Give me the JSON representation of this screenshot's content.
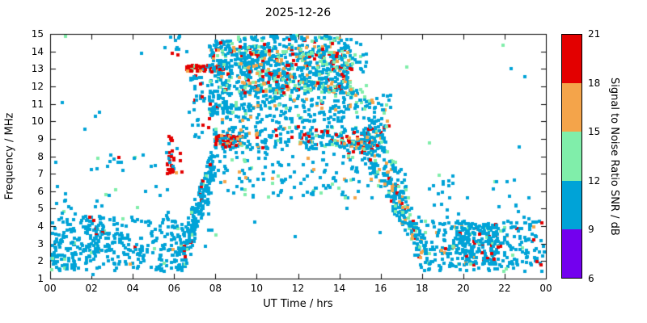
{
  "chart_data": {
    "type": "scatter",
    "title": "2025-12-26",
    "xlabel": "UT Time / hrs",
    "ylabel": "Frequency / MHz",
    "xlim": [
      0,
      24
    ],
    "ylim": [
      1,
      15
    ],
    "grid": false,
    "x_ticks": {
      "values": [
        0,
        2,
        4,
        6,
        8,
        10,
        12,
        14,
        16,
        18,
        20,
        22,
        24
      ],
      "labels": [
        "00",
        "02",
        "04",
        "06",
        "08",
        "10",
        "12",
        "14",
        "16",
        "18",
        "20",
        "22",
        "00"
      ]
    },
    "y_ticks": [
      1,
      2,
      3,
      4,
      5,
      6,
      7,
      8,
      9,
      10,
      11,
      12,
      13,
      14,
      15
    ],
    "palette": {
      "blue": "#00a3d7",
      "green": "#80eeaa",
      "orange": "#f4a44a",
      "red": "#e30000",
      "purple": "#7300ee"
    },
    "colorbar": {
      "label": "Signal to Noise Ratio SNR / dB",
      "min": 6,
      "max": 21,
      "ticks": [
        6,
        9,
        12,
        15,
        18,
        21
      ],
      "segments": [
        {
          "from": 6,
          "to": 9,
          "color": "#7300ee"
        },
        {
          "from": 9,
          "to": 12,
          "color": "#00a3d7"
        },
        {
          "from": 12,
          "to": 15,
          "color": "#80eeaa"
        },
        {
          "from": 15,
          "to": 18,
          "color": "#f4a44a"
        },
        {
          "from": 18,
          "to": 21,
          "color": "#e30000"
        }
      ]
    },
    "point_size": 4,
    "seed": 1337,
    "clusters": [
      {
        "kind": "box",
        "t": [
          0.0,
          6.4
        ],
        "f": [
          1.4,
          4.5
        ],
        "n": 300,
        "mix": {
          "blue": 0.93,
          "green": 0.04,
          "orange": 0.015,
          "red": 0.015
        }
      },
      {
        "kind": "box",
        "t": [
          0.0,
          1.2
        ],
        "f": [
          1.5,
          3.6
        ],
        "n": 50,
        "mix": {
          "blue": 0.95,
          "green": 0.05
        }
      },
      {
        "kind": "box",
        "t": [
          1.5,
          2.6
        ],
        "f": [
          2.4,
          4.6
        ],
        "n": 60,
        "mix": {
          "blue": 0.9,
          "green": 0.06,
          "red": 0.04
        }
      },
      {
        "kind": "box",
        "t": [
          0.3,
          5.8
        ],
        "f": [
          4.6,
          6.6
        ],
        "n": 22,
        "mix": {
          "blue": 0.9,
          "green": 0.1
        }
      },
      {
        "kind": "box",
        "t": [
          1.8,
          5.2
        ],
        "f": [
          7.2,
          8.1
        ],
        "n": 16,
        "mix": {
          "blue": 0.8,
          "green": 0.1,
          "red": 0.1
        }
      },
      {
        "kind": "box",
        "t": [
          5.6,
          6.4
        ],
        "f": [
          7.0,
          8.3
        ],
        "n": 28,
        "mix": {
          "red": 0.6,
          "orange": 0.15,
          "blue": 0.25
        }
      },
      {
        "kind": "box",
        "t": [
          5.75,
          6.1
        ],
        "f": [
          8.7,
          9.15
        ],
        "n": 8,
        "mix": {
          "red": 0.7,
          "blue": 0.3
        }
      },
      {
        "kind": "box",
        "t": [
          5.6,
          6.7
        ],
        "f": [
          13.8,
          15.1
        ],
        "n": 12,
        "mix": {
          "blue": 0.7,
          "red": 0.3
        }
      },
      {
        "kind": "box",
        "t": [
          6.6,
          8.4
        ],
        "f": [
          12.85,
          13.2
        ],
        "n": 85,
        "mix": {
          "red": 0.55,
          "orange": 0.12,
          "blue": 0.23,
          "green": 0.1
        }
      },
      {
        "kind": "box",
        "t": [
          6.8,
          7.4
        ],
        "f": [
          12.3,
          12.65
        ],
        "n": 14,
        "mix": {
          "blue": 0.8,
          "red": 0.2
        }
      },
      {
        "kind": "line",
        "p0": [
          6.3,
          1.9
        ],
        "p1": [
          8.1,
          8.3
        ],
        "jt": 0.22,
        "jf": 0.75,
        "n": 240,
        "mix": {
          "blue": 0.9,
          "green": 0.06,
          "red": 0.04
        }
      },
      {
        "kind": "box",
        "t": [
          6.9,
          7.8
        ],
        "f": [
          9.0,
          12.2
        ],
        "n": 30,
        "mix": {
          "blue": 0.9,
          "red": 0.1
        }
      },
      {
        "kind": "box",
        "t": [
          7.7,
          8.8
        ],
        "f": [
          10.3,
          14.6
        ],
        "n": 170,
        "mix": {
          "blue": 0.72,
          "green": 0.12,
          "red": 0.1,
          "orange": 0.06
        }
      },
      {
        "kind": "box",
        "t": [
          8.6,
          15.3
        ],
        "f": [
          10.8,
          14.8
        ],
        "n": 450,
        "mix": {
          "blue": 0.72,
          "green": 0.16,
          "orange": 0.07,
          "red": 0.05
        }
      },
      {
        "kind": "box",
        "t": [
          9.2,
          14.6
        ],
        "f": [
          11.6,
          14.3
        ],
        "n": 480,
        "mix": {
          "blue": 0.5,
          "green": 0.2,
          "orange": 0.14,
          "red": 0.16
        }
      },
      {
        "kind": "box",
        "t": [
          8.5,
          14.8
        ],
        "f": [
          14.6,
          15.05
        ],
        "n": 55,
        "mix": {
          "blue": 0.7,
          "green": 0.2,
          "red": 0.1
        }
      },
      {
        "kind": "box",
        "t": [
          8.3,
          15.2
        ],
        "f": [
          9.9,
          10.9
        ],
        "n": 110,
        "mix": {
          "blue": 0.85,
          "green": 0.1,
          "orange": 0.05
        }
      },
      {
        "kind": "box",
        "t": [
          7.9,
          15.9
        ],
        "f": [
          8.4,
          9.7
        ],
        "n": 280,
        "mix": {
          "blue": 0.7,
          "green": 0.12,
          "orange": 0.09,
          "red": 0.09
        }
      },
      {
        "kind": "box",
        "t": [
          8.0,
          9.3
        ],
        "f": [
          8.5,
          9.2
        ],
        "n": 55,
        "mix": {
          "red": 0.45,
          "orange": 0.2,
          "blue": 0.35
        }
      },
      {
        "kind": "box",
        "t": [
          14.2,
          15.7
        ],
        "f": [
          8.1,
          9.1
        ],
        "n": 60,
        "mix": {
          "red": 0.3,
          "orange": 0.25,
          "blue": 0.35,
          "green": 0.1
        }
      },
      {
        "kind": "box",
        "t": [
          8.2,
          15.8
        ],
        "f": [
          5.6,
          8.3
        ],
        "n": 130,
        "mix": {
          "blue": 0.78,
          "green": 0.14,
          "orange": 0.08
        }
      },
      {
        "kind": "box",
        "t": [
          15.2,
          16.5
        ],
        "f": [
          8.5,
          11.5
        ],
        "n": 60,
        "mix": {
          "blue": 0.7,
          "green": 0.15,
          "orange": 0.1,
          "red": 0.05
        }
      },
      {
        "kind": "line",
        "p0": [
          15.3,
          8.6
        ],
        "p1": [
          18.2,
          2.6
        ],
        "jt": 0.25,
        "jf": 0.85,
        "n": 230,
        "mix": {
          "blue": 0.7,
          "green": 0.12,
          "orange": 0.1,
          "red": 0.08
        }
      },
      {
        "kind": "line",
        "p0": [
          15.5,
          10.2
        ],
        "p1": [
          17.2,
          6.0
        ],
        "jt": 0.2,
        "jf": 0.6,
        "n": 50,
        "mix": {
          "blue": 0.8,
          "green": 0.2
        }
      },
      {
        "kind": "box",
        "t": [
          17.8,
          24.0
        ],
        "f": [
          1.4,
          4.3
        ],
        "n": 300,
        "mix": {
          "blue": 0.87,
          "green": 0.06,
          "orange": 0.03,
          "red": 0.04
        }
      },
      {
        "kind": "box",
        "t": [
          19.6,
          21.7
        ],
        "f": [
          1.8,
          4.2
        ],
        "n": 140,
        "mix": {
          "blue": 0.85,
          "green": 0.07,
          "red": 0.08
        }
      },
      {
        "kind": "box",
        "t": [
          18.3,
          23.6
        ],
        "f": [
          4.4,
          7.0
        ],
        "n": 30,
        "mix": {
          "blue": 0.9,
          "green": 0.1
        }
      },
      {
        "kind": "box",
        "t": [
          0.0,
          24.0
        ],
        "f": [
          1.2,
          15.0
        ],
        "n": 45,
        "mix": {
          "blue": 0.85,
          "green": 0.15
        }
      }
    ]
  }
}
